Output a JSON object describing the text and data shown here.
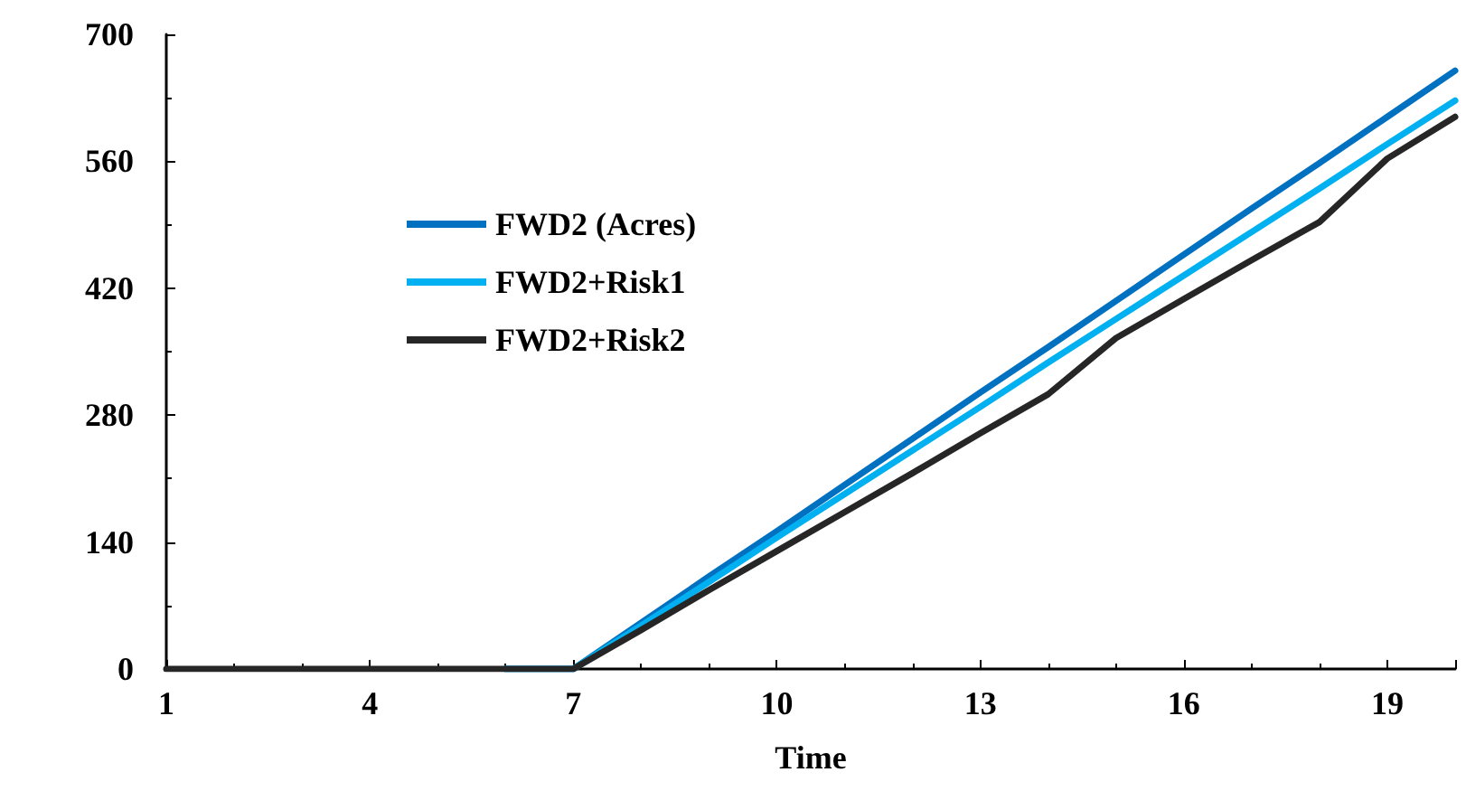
{
  "chart_data": {
    "type": "line",
    "xlabel": "Time",
    "x": [
      1,
      2,
      3,
      4,
      5,
      6,
      7,
      8,
      9,
      10,
      11,
      12,
      13,
      14,
      15,
      16,
      17,
      18,
      19,
      20
    ],
    "series": [
      {
        "name": "FWD2 (Acres)",
        "color": "#0070c0",
        "values": [
          null,
          null,
          null,
          null,
          null,
          0,
          0,
          51,
          102,
          152,
          203,
          254,
          305,
          355,
          406,
          457,
          508,
          558,
          609,
          660
        ]
      },
      {
        "name": "FWD2+Risk1",
        "color": "#00b0f0",
        "values": [
          null,
          null,
          null,
          null,
          null,
          0,
          0,
          48,
          96,
          145,
          193,
          241,
          289,
          338,
          386,
          434,
          482,
          530,
          579,
          627
        ]
      },
      {
        "name": "FWD2+Risk2",
        "color": "#262626",
        "values": [
          0,
          0,
          0,
          0,
          0,
          0,
          0,
          43,
          87,
          130,
          173,
          216,
          260,
          303,
          365,
          408,
          451,
          493,
          563,
          609
        ]
      }
    ],
    "xlim": [
      1,
      20
    ],
    "xticks": [
      1,
      4,
      7,
      10,
      13,
      16,
      19
    ],
    "ylim": [
      0,
      700
    ],
    "yticks": [
      0,
      140,
      280,
      420,
      560,
      700
    ],
    "grid": false,
    "legend": "top left",
    "marker": "none",
    "line_style": "solid"
  }
}
